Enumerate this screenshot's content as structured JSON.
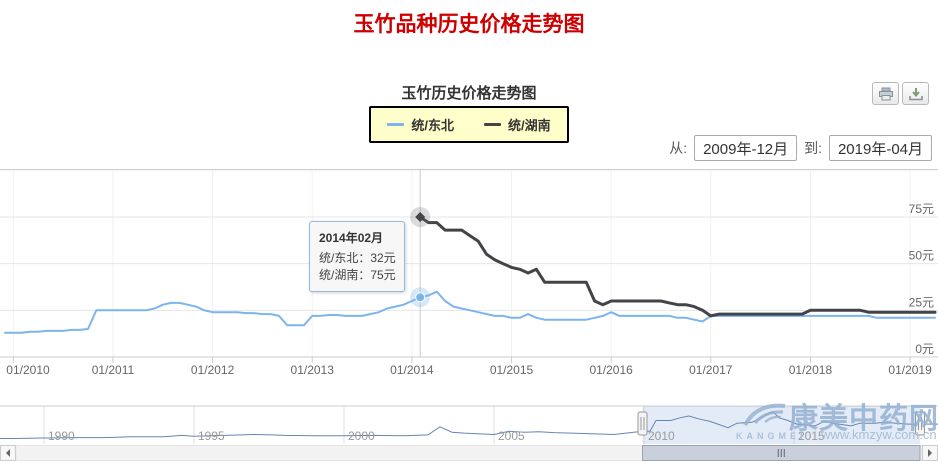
{
  "page": {
    "title": "玉竹品种历史价格走势图"
  },
  "toolbar": {
    "print": "打印",
    "download": "下载"
  },
  "range": {
    "from_label": "从:",
    "from_value": "2009年-12月",
    "to_label": "到:",
    "to_value": "2019年-04月"
  },
  "tooltip": {
    "title": "2014年02月",
    "rows": [
      {
        "name": "统/东北",
        "value": "32元"
      },
      {
        "name": "统/湖南",
        "value": "75元"
      }
    ]
  },
  "watermark": {
    "brand": "康美中药网",
    "latin": "KANGMEI",
    "url": "www.kmzyw.com.cn"
  },
  "chart_data": {
    "type": "line",
    "title": "玉竹历史价格走势图",
    "main": {
      "x_start": "2009-12",
      "x_end": "2019-04",
      "x_tick_labels": [
        "01/2010",
        "01/2011",
        "01/2012",
        "01/2013",
        "01/2014",
        "01/2015",
        "01/2016",
        "01/2017",
        "01/2018",
        "01/2019"
      ],
      "y_ticks": [
        {
          "v": 75,
          "label": "75元"
        },
        {
          "v": 50,
          "label": "50元"
        },
        {
          "v": 25,
          "label": "25元"
        },
        {
          "v": 0,
          "label": "0元"
        }
      ],
      "ylim": [
        0,
        100
      ],
      "grid": true,
      "crosshair_index": 50,
      "series": [
        {
          "name": "统/东北",
          "color": "#7cb5ec",
          "width": 2,
          "start_index": 0,
          "values": [
            13,
            13,
            13,
            13.5,
            13.5,
            14,
            14,
            14,
            14.5,
            14.5,
            15,
            25,
            25,
            25,
            25,
            25,
            25,
            25,
            26,
            28,
            29,
            29,
            28,
            27,
            25,
            24,
            24,
            24,
            24,
            23.5,
            23.5,
            23,
            23,
            22,
            17,
            17,
            17,
            22,
            22,
            22.5,
            22.5,
            22,
            22,
            22,
            23,
            24,
            26,
            27,
            28,
            30,
            32,
            33,
            35,
            30,
            27,
            26,
            25,
            24,
            23,
            22,
            22,
            21,
            21,
            23,
            21,
            20,
            20,
            20,
            20,
            20,
            20,
            21,
            22,
            24,
            22,
            22,
            22,
            22,
            22,
            22,
            22,
            21,
            21,
            20,
            19,
            22,
            22,
            22,
            22,
            22,
            22,
            22,
            22,
            22,
            22,
            22,
            22,
            22,
            22,
            22,
            22,
            22,
            22,
            22,
            22,
            21,
            21,
            21,
            21,
            21,
            21,
            21,
            21
          ]
        },
        {
          "name": "统/湖南",
          "color": "#434348",
          "width": 3,
          "start_index": 50,
          "values": [
            75,
            72,
            72,
            68,
            68,
            68,
            65,
            62,
            55,
            52,
            50,
            48,
            47,
            45,
            47,
            40,
            40,
            40,
            40,
            40,
            40,
            30,
            28,
            30,
            30,
            30,
            30,
            30,
            30,
            30,
            29,
            28,
            28,
            27,
            25,
            22,
            23,
            23,
            23,
            23,
            23,
            23,
            23,
            23,
            23,
            23,
            23,
            25,
            25,
            25,
            25,
            25,
            25,
            25,
            24,
            24,
            24,
            24,
            24,
            24,
            24,
            24,
            24
          ]
        }
      ],
      "tooltip_point": {
        "index": 50,
        "values": [
          32,
          75
        ]
      }
    },
    "navigator": {
      "year_labels": [
        "1990",
        "1995",
        "2000",
        "2005",
        "2010",
        "2015"
      ],
      "x_range": [
        1988.5,
        2019.8
      ],
      "selection_years": [
        2009.95,
        2019.2
      ],
      "series_color": "#6685b2",
      "series": [
        [
          1988.5,
          5
        ],
        [
          1989,
          5
        ],
        [
          1990,
          5.5
        ],
        [
          1991,
          6
        ],
        [
          1992,
          6
        ],
        [
          1993,
          7
        ],
        [
          1994,
          7
        ],
        [
          1994.6,
          8.5
        ],
        [
          1995,
          7.5
        ],
        [
          1995.6,
          8
        ],
        [
          1996,
          8.5
        ],
        [
          1997,
          9.5
        ],
        [
          1997.6,
          9
        ],
        [
          1998,
          8.5
        ],
        [
          1999,
          8
        ],
        [
          2000,
          8
        ],
        [
          2001,
          8.5
        ],
        [
          2002,
          8
        ],
        [
          2002.8,
          9
        ],
        [
          2003.2,
          18
        ],
        [
          2003.6,
          12
        ],
        [
          2004,
          11
        ],
        [
          2005,
          9.5
        ],
        [
          2005.5,
          13
        ],
        [
          2006,
          12
        ],
        [
          2006.5,
          12.5
        ],
        [
          2007,
          11.5
        ],
        [
          2008,
          10.5
        ],
        [
          2009,
          9.5
        ],
        [
          2009.95,
          13
        ],
        [
          2010.2,
          13
        ],
        [
          2010.4,
          25
        ],
        [
          2010.9,
          25
        ],
        [
          2011.2,
          28
        ],
        [
          2011.5,
          30
        ],
        [
          2011.8,
          27
        ],
        [
          2012.2,
          24
        ],
        [
          2012.8,
          17
        ],
        [
          2013.1,
          22
        ],
        [
          2013.6,
          23
        ],
        [
          2013.9,
          28
        ],
        [
          2014.1,
          32
        ],
        [
          2014.3,
          35
        ],
        [
          2014.5,
          28
        ],
        [
          2014.8,
          25
        ],
        [
          2015.1,
          21
        ],
        [
          2015.4,
          20
        ],
        [
          2015.7,
          19
        ],
        [
          2016.0,
          24
        ],
        [
          2016.3,
          22
        ],
        [
          2016.9,
          19
        ],
        [
          2017.2,
          22
        ],
        [
          2017.7,
          22
        ],
        [
          2018.0,
          23
        ],
        [
          2018.4,
          22
        ],
        [
          2018.8,
          21
        ],
        [
          2019.2,
          21
        ],
        [
          2019.8,
          21
        ]
      ]
    }
  }
}
